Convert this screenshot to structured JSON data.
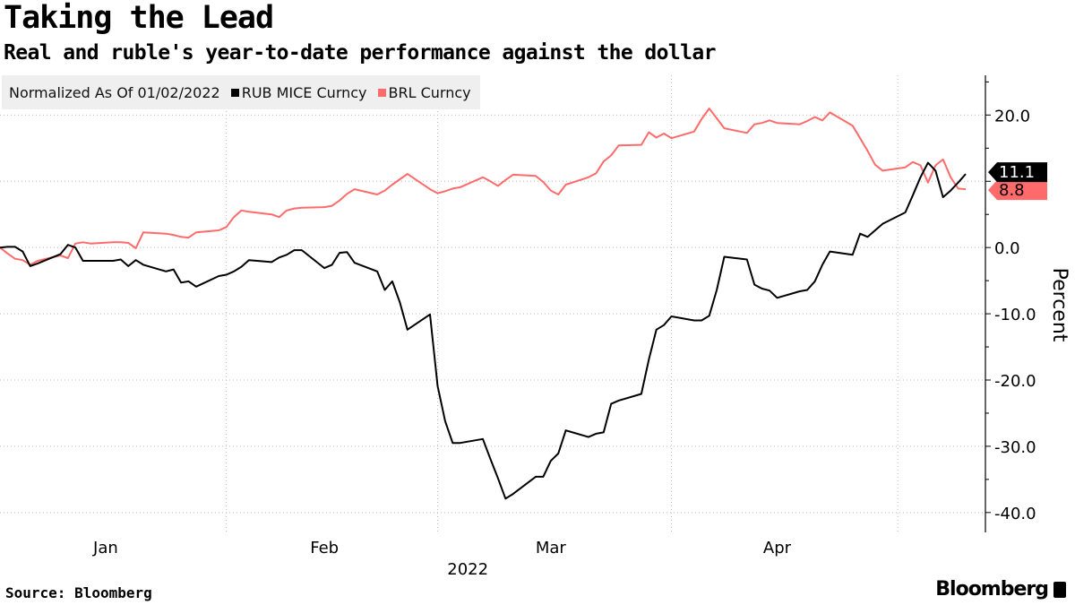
{
  "title": "Taking the Lead",
  "subtitle": "Real and ruble's year-to-date performance against the dollar",
  "legend": {
    "note": "Normalized As Of 01/02/2022",
    "items": [
      {
        "label": "RUB MICE Curncy",
        "color": "#000000"
      },
      {
        "label": "BRL Curncy",
        "color": "#ff6b6b"
      }
    ]
  },
  "source": "Source: Bloomberg",
  "brand": "Bloomberg",
  "chart_data": {
    "type": "line",
    "title": "Taking the Lead",
    "subtitle": "Real and ruble's year-to-date performance against the dollar",
    "ylabel": "Percent",
    "xlabel": "2022",
    "ylim": [
      -43,
      26
    ],
    "yticks": [
      20.0,
      10.0,
      0.0,
      -10.0,
      -20.0,
      -30.0,
      -40.0
    ],
    "ytick_labels": [
      "20.0",
      "10.0",
      "0.0",
      "-10.0",
      "-20.0",
      "-30.0",
      "-40.0"
    ],
    "x_start": "2022-01-02",
    "x_end": "2022-05-10",
    "x_tick_labels": [
      {
        "label": "Jan",
        "date": "2022-01-16"
      },
      {
        "label": "Feb",
        "date": "2022-02-14"
      },
      {
        "label": "Mar",
        "date": "2022-03-16"
      },
      {
        "label": "Apr",
        "date": "2022-04-15"
      }
    ],
    "x_gridlines": [
      "2022-02-01",
      "2022-03-01",
      "2022-04-01",
      "2022-05-01"
    ],
    "year_label": "2022",
    "grid": true,
    "legend_position": "top-left",
    "series": [
      {
        "name": "RUB MICE Curncy",
        "color": "#000000",
        "end_label": "11.1",
        "points": [
          [
            "2022-01-02",
            0.0
          ],
          [
            "2022-01-03",
            0.1
          ],
          [
            "2022-01-04",
            0.1
          ],
          [
            "2022-01-05",
            -0.6
          ],
          [
            "2022-01-06",
            -2.8
          ],
          [
            "2022-01-07",
            -2.4
          ],
          [
            "2022-01-10",
            -1.0
          ],
          [
            "2022-01-11",
            0.4
          ],
          [
            "2022-01-12",
            0.0
          ],
          [
            "2022-01-13",
            -2.0
          ],
          [
            "2022-01-14",
            -2.0
          ],
          [
            "2022-01-17",
            -2.0
          ],
          [
            "2022-01-18",
            -1.8
          ],
          [
            "2022-01-19",
            -2.8
          ],
          [
            "2022-01-20",
            -1.9
          ],
          [
            "2022-01-21",
            -2.6
          ],
          [
            "2022-01-24",
            -3.6
          ],
          [
            "2022-01-25",
            -3.3
          ],
          [
            "2022-01-26",
            -5.3
          ],
          [
            "2022-01-27",
            -5.1
          ],
          [
            "2022-01-28",
            -5.9
          ],
          [
            "2022-01-31",
            -4.3
          ],
          [
            "2022-02-01",
            -4.1
          ],
          [
            "2022-02-02",
            -3.6
          ],
          [
            "2022-02-03",
            -2.9
          ],
          [
            "2022-02-04",
            -1.9
          ],
          [
            "2022-02-07",
            -2.2
          ],
          [
            "2022-02-08",
            -1.5
          ],
          [
            "2022-02-09",
            -1.1
          ],
          [
            "2022-02-10",
            -0.4
          ],
          [
            "2022-02-11",
            -0.4
          ],
          [
            "2022-02-14",
            -3.1
          ],
          [
            "2022-02-15",
            -2.6
          ],
          [
            "2022-02-16",
            -0.8
          ],
          [
            "2022-02-17",
            -0.7
          ],
          [
            "2022-02-18",
            -2.3
          ],
          [
            "2022-02-21",
            -3.6
          ],
          [
            "2022-02-22",
            -6.4
          ],
          [
            "2022-02-23",
            -5.1
          ],
          [
            "2022-02-24",
            -8.3
          ],
          [
            "2022-02-25",
            -12.4
          ],
          [
            "2022-02-28",
            -10.1
          ],
          [
            "2022-03-01",
            -20.9
          ],
          [
            "2022-03-02",
            -26.2
          ],
          [
            "2022-03-03",
            -29.5
          ],
          [
            "2022-03-04",
            -29.5
          ],
          [
            "2022-03-07",
            -28.9
          ],
          [
            "2022-03-08",
            -31.9
          ],
          [
            "2022-03-09",
            -34.8
          ],
          [
            "2022-03-10",
            -37.9
          ],
          [
            "2022-03-11",
            -37.2
          ],
          [
            "2022-03-14",
            -34.6
          ],
          [
            "2022-03-15",
            -34.6
          ],
          [
            "2022-03-16",
            -32.2
          ],
          [
            "2022-03-17",
            -31.1
          ],
          [
            "2022-03-18",
            -27.6
          ],
          [
            "2022-03-21",
            -28.6
          ],
          [
            "2022-03-22",
            -28.1
          ],
          [
            "2022-03-23",
            -27.9
          ],
          [
            "2022-03-24",
            -23.6
          ],
          [
            "2022-03-25",
            -23.1
          ],
          [
            "2022-03-28",
            -22.1
          ],
          [
            "2022-03-29",
            -16.9
          ],
          [
            "2022-03-30",
            -12.4
          ],
          [
            "2022-03-31",
            -11.7
          ],
          [
            "2022-04-01",
            -10.4
          ],
          [
            "2022-04-04",
            -11.0
          ],
          [
            "2022-04-05",
            -11.0
          ],
          [
            "2022-04-06",
            -10.3
          ],
          [
            "2022-04-07",
            -6.4
          ],
          [
            "2022-04-08",
            -1.4
          ],
          [
            "2022-04-11",
            -1.8
          ],
          [
            "2022-04-12",
            -5.6
          ],
          [
            "2022-04-13",
            -6.2
          ],
          [
            "2022-04-14",
            -6.5
          ],
          [
            "2022-04-15",
            -7.6
          ],
          [
            "2022-04-18",
            -6.6
          ],
          [
            "2022-04-19",
            -6.4
          ],
          [
            "2022-04-20",
            -5.1
          ],
          [
            "2022-04-21",
            -2.6
          ],
          [
            "2022-04-22",
            -0.6
          ],
          [
            "2022-04-25",
            -1.1
          ],
          [
            "2022-04-26",
            2.1
          ],
          [
            "2022-04-27",
            1.6
          ],
          [
            "2022-04-28",
            2.6
          ],
          [
            "2022-04-29",
            3.6
          ],
          [
            "2022-05-02",
            5.3
          ],
          [
            "2022-05-03",
            7.9
          ],
          [
            "2022-05-04",
            10.6
          ],
          [
            "2022-05-05",
            12.8
          ],
          [
            "2022-05-06",
            11.6
          ],
          [
            "2022-05-07",
            7.6
          ],
          [
            "2022-05-08",
            8.6
          ],
          [
            "2022-05-09",
            9.8
          ],
          [
            "2022-05-10",
            11.1
          ]
        ]
      },
      {
        "name": "BRL Curncy",
        "color": "#ff6b6b",
        "end_label": "8.8",
        "points": [
          [
            "2022-01-02",
            0.0
          ],
          [
            "2022-01-03",
            -0.9
          ],
          [
            "2022-01-04",
            -1.7
          ],
          [
            "2022-01-05",
            -1.9
          ],
          [
            "2022-01-06",
            -2.6
          ],
          [
            "2022-01-07",
            -2.0
          ],
          [
            "2022-01-10",
            -1.2
          ],
          [
            "2022-01-11",
            -1.6
          ],
          [
            "2022-01-12",
            0.6
          ],
          [
            "2022-01-13",
            0.8
          ],
          [
            "2022-01-14",
            0.6
          ],
          [
            "2022-01-17",
            0.8
          ],
          [
            "2022-01-18",
            0.8
          ],
          [
            "2022-01-19",
            0.7
          ],
          [
            "2022-01-20",
            -0.1
          ],
          [
            "2022-01-21",
            2.3
          ],
          [
            "2022-01-24",
            2.1
          ],
          [
            "2022-01-25",
            1.9
          ],
          [
            "2022-01-26",
            1.6
          ],
          [
            "2022-01-27",
            1.5
          ],
          [
            "2022-01-28",
            2.3
          ],
          [
            "2022-01-31",
            2.6
          ],
          [
            "2022-02-01",
            3.1
          ],
          [
            "2022-02-02",
            4.6
          ],
          [
            "2022-02-03",
            5.6
          ],
          [
            "2022-02-04",
            5.4
          ],
          [
            "2022-02-07",
            5.0
          ],
          [
            "2022-02-08",
            4.6
          ],
          [
            "2022-02-09",
            5.6
          ],
          [
            "2022-02-10",
            5.9
          ],
          [
            "2022-02-11",
            6.0
          ],
          [
            "2022-02-14",
            6.1
          ],
          [
            "2022-02-15",
            6.3
          ],
          [
            "2022-02-16",
            7.1
          ],
          [
            "2022-02-17",
            8.1
          ],
          [
            "2022-02-18",
            8.8
          ],
          [
            "2022-02-21",
            8.0
          ],
          [
            "2022-02-22",
            8.6
          ],
          [
            "2022-02-23",
            9.5
          ],
          [
            "2022-02-24",
            10.3
          ],
          [
            "2022-02-25",
            11.1
          ],
          [
            "2022-02-28",
            8.8
          ],
          [
            "2022-03-01",
            8.2
          ],
          [
            "2022-03-02",
            8.5
          ],
          [
            "2022-03-03",
            8.9
          ],
          [
            "2022-03-04",
            9.1
          ],
          [
            "2022-03-07",
            10.6
          ],
          [
            "2022-03-08",
            10.0
          ],
          [
            "2022-03-09",
            9.3
          ],
          [
            "2022-03-10",
            10.2
          ],
          [
            "2022-03-11",
            11.0
          ],
          [
            "2022-03-14",
            10.8
          ],
          [
            "2022-03-15",
            9.9
          ],
          [
            "2022-03-16",
            8.6
          ],
          [
            "2022-03-17",
            8.0
          ],
          [
            "2022-03-18",
            9.5
          ],
          [
            "2022-03-21",
            10.6
          ],
          [
            "2022-03-22",
            11.2
          ],
          [
            "2022-03-23",
            13.0
          ],
          [
            "2022-03-24",
            13.9
          ],
          [
            "2022-03-25",
            15.4
          ],
          [
            "2022-03-28",
            15.5
          ],
          [
            "2022-03-29",
            17.4
          ],
          [
            "2022-03-30",
            16.6
          ],
          [
            "2022-03-31",
            17.2
          ],
          [
            "2022-04-01",
            16.5
          ],
          [
            "2022-04-04",
            17.5
          ],
          [
            "2022-04-05",
            19.4
          ],
          [
            "2022-04-06",
            21.0
          ],
          [
            "2022-04-07",
            19.5
          ],
          [
            "2022-04-08",
            18.0
          ],
          [
            "2022-04-11",
            17.3
          ],
          [
            "2022-04-12",
            18.6
          ],
          [
            "2022-04-13",
            18.8
          ],
          [
            "2022-04-14",
            19.2
          ],
          [
            "2022-04-15",
            18.8
          ],
          [
            "2022-04-18",
            18.6
          ],
          [
            "2022-04-19",
            19.1
          ],
          [
            "2022-04-20",
            19.7
          ],
          [
            "2022-04-21",
            19.2
          ],
          [
            "2022-04-22",
            20.4
          ],
          [
            "2022-04-25",
            18.4
          ],
          [
            "2022-04-26",
            16.5
          ],
          [
            "2022-04-27",
            14.6
          ],
          [
            "2022-04-28",
            12.5
          ],
          [
            "2022-04-29",
            11.6
          ],
          [
            "2022-05-02",
            12.1
          ],
          [
            "2022-05-03",
            12.9
          ],
          [
            "2022-05-04",
            12.4
          ],
          [
            "2022-05-05",
            9.8
          ],
          [
            "2022-05-06",
            12.4
          ],
          [
            "2022-05-07",
            13.3
          ],
          [
            "2022-05-08",
            10.6
          ],
          [
            "2022-05-09",
            8.9
          ],
          [
            "2022-05-10",
            8.8
          ]
        ]
      }
    ]
  }
}
